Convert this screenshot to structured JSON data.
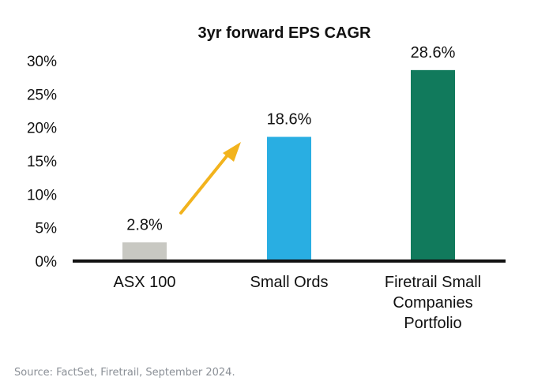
{
  "chart_data": {
    "type": "bar",
    "title": "3yr forward EPS CAGR",
    "xlabel": "",
    "ylabel": "",
    "categories": [
      [
        "ASX 100"
      ],
      [
        "Small Ords"
      ],
      [
        "Firetrail Small",
        "Companies",
        "Portfolio"
      ]
    ],
    "values": [
      2.8,
      18.6,
      28.6
    ],
    "data_labels": [
      "2.8%",
      "18.6%",
      "28.6%"
    ],
    "bar_colors": [
      "#c8c8c2",
      "#29aee2",
      "#117a5c"
    ],
    "ylim": [
      0,
      30
    ],
    "yticks": [
      0,
      5,
      10,
      15,
      20,
      25,
      30
    ],
    "ytick_labels": [
      "0%",
      "5%",
      "10%",
      "15%",
      "20%",
      "25%",
      "30%"
    ],
    "grid": false,
    "legend": "none",
    "annotation": {
      "type": "arrow",
      "from_category": 0,
      "to_category": 1,
      "color": "#f2b31d"
    }
  },
  "footer": {
    "source": "Source: FactSet, Firetrail, September 2024."
  }
}
